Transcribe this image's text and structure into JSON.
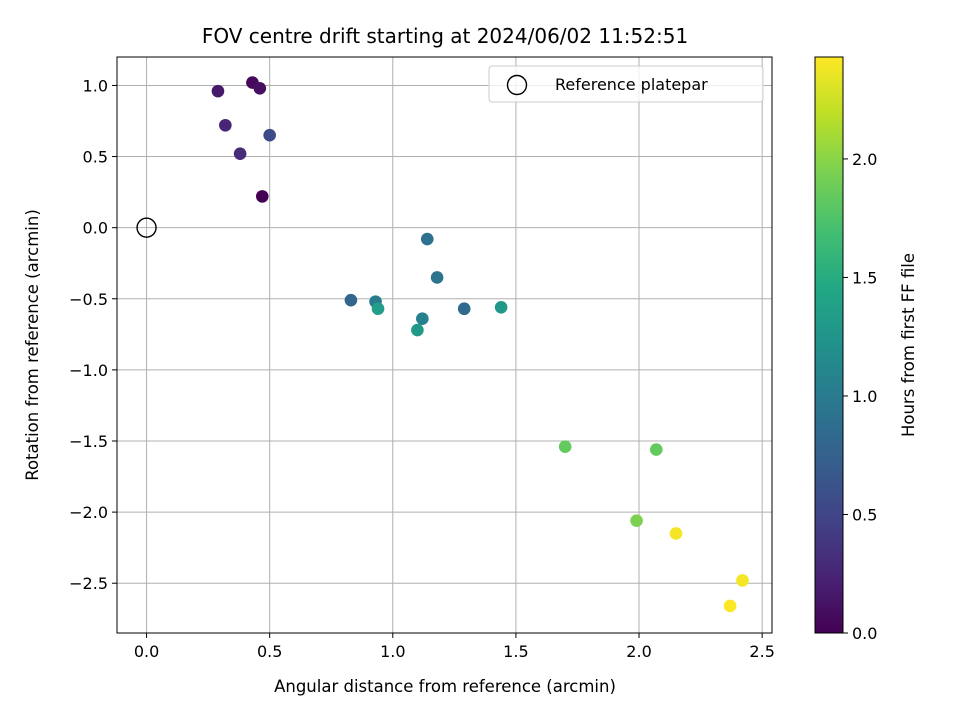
{
  "chart_data": {
    "type": "scatter",
    "title": "FOV centre drift starting at 2024/06/02 11:52:51",
    "xlabel": "Angular distance from reference (arcmin)",
    "ylabel": "Rotation from reference (arcmin)",
    "xlim": [
      -0.12,
      2.54
    ],
    "ylim": [
      -2.85,
      1.2
    ],
    "xticks": [
      0.0,
      0.5,
      1.0,
      1.5,
      2.0,
      2.5
    ],
    "xtick_labels": [
      "0.0",
      "0.5",
      "1.0",
      "1.5",
      "2.0",
      "2.5"
    ],
    "yticks": [
      1.0,
      0.5,
      0.0,
      -0.5,
      -1.0,
      -1.5,
      -2.0,
      -2.5
    ],
    "ytick_labels": [
      "1.0",
      "0.5",
      "0.0",
      "−0.5",
      "−1.0",
      "−1.5",
      "−2.0",
      "−2.5"
    ],
    "grid": true,
    "legend": {
      "entry": "Reference platepar",
      "position": "top-right"
    },
    "reference_point": {
      "x": 0.0,
      "y": 0.0
    },
    "colorbar": {
      "label": "Hours from first FF file",
      "colormap": "viridis",
      "range": [
        0.0,
        2.43
      ],
      "ticks": [
        0.0,
        0.5,
        1.0,
        1.5,
        2.0
      ],
      "tick_labels": [
        "0.0",
        "0.5",
        "1.0",
        "1.5",
        "2.0"
      ]
    },
    "points": [
      {
        "x": 0.47,
        "y": 0.22,
        "hours": 0.0
      },
      {
        "x": 0.43,
        "y": 1.02,
        "hours": 0.05
      },
      {
        "x": 0.46,
        "y": 0.98,
        "hours": 0.1
      },
      {
        "x": 0.29,
        "y": 0.96,
        "hours": 0.17
      },
      {
        "x": 0.32,
        "y": 0.72,
        "hours": 0.25
      },
      {
        "x": 0.38,
        "y": 0.52,
        "hours": 0.3
      },
      {
        "x": 0.5,
        "y": 0.65,
        "hours": 0.55
      },
      {
        "x": 0.83,
        "y": -0.51,
        "hours": 0.8
      },
      {
        "x": 1.29,
        "y": -0.57,
        "hours": 0.85
      },
      {
        "x": 1.14,
        "y": -0.08,
        "hours": 0.9
      },
      {
        "x": 1.18,
        "y": -0.35,
        "hours": 0.92
      },
      {
        "x": 0.93,
        "y": -0.52,
        "hours": 1.0
      },
      {
        "x": 1.12,
        "y": -0.64,
        "hours": 1.05
      },
      {
        "x": 1.44,
        "y": -0.56,
        "hours": 1.3
      },
      {
        "x": 0.94,
        "y": -0.57,
        "hours": 1.35
      },
      {
        "x": 1.1,
        "y": -0.72,
        "hours": 1.3
      },
      {
        "x": 1.7,
        "y": -1.54,
        "hours": 1.85
      },
      {
        "x": 2.07,
        "y": -1.56,
        "hours": 1.85
      },
      {
        "x": 1.99,
        "y": -2.06,
        "hours": 1.95
      },
      {
        "x": 2.15,
        "y": -2.15,
        "hours": 2.4
      },
      {
        "x": 2.42,
        "y": -2.48,
        "hours": 2.4
      },
      {
        "x": 2.37,
        "y": -2.66,
        "hours": 2.43
      }
    ]
  }
}
